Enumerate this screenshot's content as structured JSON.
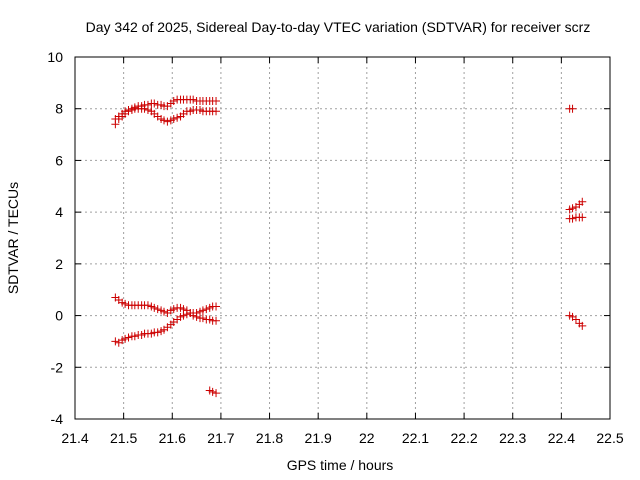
{
  "chart_data": {
    "type": "scatter",
    "title": "Day 342 of 2025, Sidereal Day-to-day VTEC variation (SDTVAR) for receiver scrz",
    "xlabel": "GPS time / hours",
    "ylabel": "SDTVAR / TECUs",
    "xlim": [
      21.4,
      22.5
    ],
    "ylim": [
      -4,
      10
    ],
    "xticks": [
      "21.4",
      "21.5",
      "21.6",
      "21.7",
      "21.8",
      "21.9",
      "22",
      "22.1",
      "22.2",
      "22.3",
      "22.4",
      "22.5"
    ],
    "yticks": [
      "-4",
      "-2",
      "0",
      "2",
      "4",
      "6",
      "8",
      "10"
    ],
    "grid": true,
    "marker": "+",
    "color": "#cc0000",
    "series": [
      {
        "name": "upper-a",
        "points": [
          [
            21.483,
            7.6
          ],
          [
            21.49,
            7.7
          ],
          [
            21.497,
            7.8
          ],
          [
            21.503,
            7.9
          ],
          [
            21.51,
            7.95
          ],
          [
            21.517,
            8.0
          ],
          [
            21.523,
            8.05
          ],
          [
            21.53,
            8.1
          ],
          [
            21.537,
            8.1
          ],
          [
            21.543,
            8.15
          ],
          [
            21.55,
            8.15
          ],
          [
            21.557,
            8.2
          ],
          [
            21.563,
            8.2
          ],
          [
            21.57,
            8.15
          ],
          [
            21.577,
            8.15
          ],
          [
            21.583,
            8.1
          ],
          [
            21.59,
            8.1
          ],
          [
            21.597,
            8.2
          ],
          [
            21.603,
            8.3
          ],
          [
            21.61,
            8.35
          ],
          [
            21.617,
            8.35
          ],
          [
            21.623,
            8.35
          ],
          [
            21.63,
            8.35
          ],
          [
            21.637,
            8.35
          ],
          [
            21.643,
            8.35
          ],
          [
            21.65,
            8.3
          ],
          [
            21.657,
            8.3
          ],
          [
            21.663,
            8.3
          ],
          [
            21.67,
            8.3
          ],
          [
            21.677,
            8.3
          ],
          [
            21.683,
            8.3
          ],
          [
            21.69,
            8.3
          ]
        ]
      },
      {
        "name": "upper-b",
        "points": [
          [
            21.483,
            7.4
          ],
          [
            21.49,
            7.6
          ],
          [
            21.497,
            7.7
          ],
          [
            21.503,
            7.8
          ],
          [
            21.51,
            7.9
          ],
          [
            21.517,
            7.95
          ],
          [
            21.523,
            8.0
          ],
          [
            21.53,
            8.0
          ],
          [
            21.537,
            8.0
          ],
          [
            21.543,
            8.0
          ],
          [
            21.55,
            7.95
          ],
          [
            21.557,
            7.9
          ],
          [
            21.563,
            7.8
          ],
          [
            21.57,
            7.7
          ],
          [
            21.577,
            7.6
          ],
          [
            21.583,
            7.55
          ],
          [
            21.59,
            7.5
          ],
          [
            21.597,
            7.55
          ],
          [
            21.603,
            7.6
          ],
          [
            21.61,
            7.65
          ],
          [
            21.617,
            7.7
          ],
          [
            21.623,
            7.8
          ],
          [
            21.63,
            7.9
          ],
          [
            21.637,
            7.9
          ],
          [
            21.643,
            7.95
          ],
          [
            21.65,
            7.95
          ],
          [
            21.657,
            7.95
          ],
          [
            21.663,
            7.9
          ],
          [
            21.67,
            7.9
          ],
          [
            21.677,
            7.9
          ],
          [
            21.683,
            7.9
          ],
          [
            21.69,
            7.9
          ]
        ]
      },
      {
        "name": "lower-a",
        "points": [
          [
            21.483,
            0.7
          ],
          [
            21.49,
            0.6
          ],
          [
            21.497,
            0.5
          ],
          [
            21.503,
            0.45
          ],
          [
            21.51,
            0.4
          ],
          [
            21.517,
            0.4
          ],
          [
            21.523,
            0.4
          ],
          [
            21.53,
            0.4
          ],
          [
            21.537,
            0.4
          ],
          [
            21.543,
            0.4
          ],
          [
            21.55,
            0.4
          ],
          [
            21.557,
            0.35
          ],
          [
            21.563,
            0.3
          ],
          [
            21.57,
            0.25
          ],
          [
            21.577,
            0.2
          ],
          [
            21.583,
            0.15
          ],
          [
            21.59,
            0.1
          ],
          [
            21.597,
            0.2
          ],
          [
            21.603,
            0.25
          ],
          [
            21.61,
            0.3
          ],
          [
            21.617,
            0.3
          ],
          [
            21.623,
            0.25
          ],
          [
            21.63,
            0.2
          ],
          [
            21.637,
            0.1
          ],
          [
            21.643,
            0.0
          ],
          [
            21.65,
            -0.05
          ],
          [
            21.657,
            -0.1
          ],
          [
            21.663,
            -0.1
          ],
          [
            21.67,
            -0.15
          ],
          [
            21.677,
            -0.15
          ],
          [
            21.683,
            -0.2
          ],
          [
            21.69,
            -0.2
          ]
        ]
      },
      {
        "name": "lower-b",
        "points": [
          [
            21.483,
            -1.0
          ],
          [
            21.49,
            -1.05
          ],
          [
            21.497,
            -0.95
          ],
          [
            21.503,
            -0.9
          ],
          [
            21.51,
            -0.85
          ],
          [
            21.517,
            -0.8
          ],
          [
            21.523,
            -0.8
          ],
          [
            21.53,
            -0.75
          ],
          [
            21.537,
            -0.75
          ],
          [
            21.543,
            -0.7
          ],
          [
            21.55,
            -0.7
          ],
          [
            21.557,
            -0.7
          ],
          [
            21.563,
            -0.65
          ],
          [
            21.57,
            -0.65
          ],
          [
            21.577,
            -0.6
          ],
          [
            21.583,
            -0.55
          ],
          [
            21.59,
            -0.45
          ],
          [
            21.597,
            -0.35
          ],
          [
            21.603,
            -0.25
          ],
          [
            21.61,
            -0.15
          ],
          [
            21.617,
            -0.05
          ],
          [
            21.623,
            0.0
          ],
          [
            21.63,
            0.05
          ],
          [
            21.637,
            0.1
          ],
          [
            21.643,
            0.1
          ],
          [
            21.65,
            0.1
          ],
          [
            21.657,
            0.15
          ],
          [
            21.663,
            0.2
          ],
          [
            21.67,
            0.25
          ],
          [
            21.677,
            0.3
          ],
          [
            21.683,
            0.35
          ],
          [
            21.69,
            0.35
          ]
        ]
      },
      {
        "name": "isolated-low",
        "points": [
          [
            21.677,
            -2.9
          ],
          [
            21.683,
            -2.95
          ],
          [
            21.69,
            -3.0
          ]
        ]
      },
      {
        "name": "right-cluster",
        "points": [
          [
            22.417,
            8.0
          ],
          [
            22.423,
            8.0
          ],
          [
            22.417,
            4.1
          ],
          [
            22.423,
            4.15
          ],
          [
            22.43,
            4.2
          ],
          [
            22.437,
            4.3
          ],
          [
            22.443,
            4.4
          ],
          [
            22.417,
            3.75
          ],
          [
            22.423,
            3.75
          ],
          [
            22.43,
            3.8
          ],
          [
            22.437,
            3.8
          ],
          [
            22.443,
            3.8
          ],
          [
            22.417,
            0.0
          ],
          [
            22.423,
            -0.05
          ],
          [
            22.43,
            -0.15
          ],
          [
            22.437,
            -0.3
          ],
          [
            22.443,
            -0.4
          ]
        ]
      }
    ]
  }
}
